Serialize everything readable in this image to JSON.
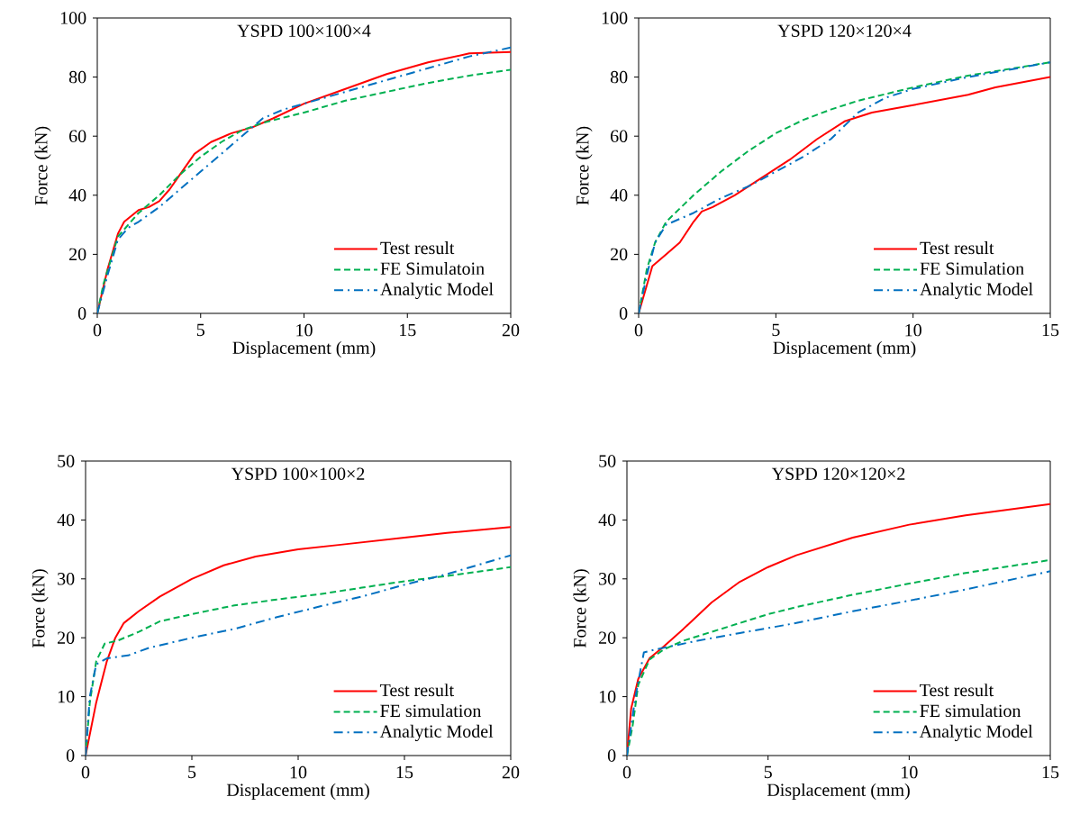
{
  "chart_data": [
    {
      "type": "line",
      "title": "YSPD 100×100×4",
      "xlabel": "Displacement (mm)",
      "ylabel": "Force (kN)",
      "xlim": [
        0,
        20
      ],
      "ylim": [
        0,
        100
      ],
      "xticks": [
        0,
        5,
        10,
        15,
        20
      ],
      "yticks": [
        0,
        20,
        40,
        60,
        80,
        100
      ],
      "legend": "bottom right",
      "series": [
        {
          "name": "Test result",
          "color": "#ff0000",
          "line_style": "solid",
          "x": [
            0,
            0.5,
            1,
            1.3,
            2,
            2.5,
            3,
            3.5,
            4,
            4.7,
            5.5,
            6.5,
            7.5,
            8.5,
            10,
            12,
            14,
            16,
            18,
            20
          ],
          "values": [
            0,
            15,
            27,
            31,
            35,
            36,
            38,
            42,
            47,
            54,
            58,
            61,
            63,
            66,
            71,
            76,
            81,
            85,
            88,
            88.5
          ]
        },
        {
          "name": "FE Simulatoin",
          "color": "#00b050",
          "line_style": "dashed",
          "x": [
            0,
            0.3,
            1,
            2,
            3,
            4,
            5,
            6,
            7,
            8,
            10,
            12,
            14,
            16,
            18,
            20
          ],
          "values": [
            0,
            10,
            26,
            34,
            40,
            47,
            53,
            58,
            62,
            64.5,
            68,
            72,
            75,
            78,
            80.5,
            82.5
          ]
        },
        {
          "name": "Analytic Model",
          "color": "#0070c0",
          "line_style": "dashdot",
          "x": [
            0,
            0.5,
            1,
            1.5,
            2,
            3,
            4,
            5,
            6,
            7,
            8,
            9,
            10,
            12,
            14,
            16,
            18,
            20
          ],
          "values": [
            0,
            13,
            25,
            29,
            31,
            36,
            42,
            48,
            54,
            60,
            66,
            69,
            71,
            75,
            79,
            83,
            87,
            90
          ]
        }
      ]
    },
    {
      "type": "line",
      "title": "YSPD 120×120×4",
      "xlabel": "Displacement (mm)",
      "ylabel": "Force (kN)",
      "xlim": [
        0,
        15
      ],
      "ylim": [
        0,
        100
      ],
      "xticks": [
        0,
        5,
        10,
        15
      ],
      "yticks": [
        0,
        20,
        40,
        60,
        80,
        100
      ],
      "legend": "bottom right",
      "series": [
        {
          "name": "Test result",
          "color": "#ff0000",
          "line_style": "solid",
          "x": [
            0,
            0.5,
            1,
            1.5,
            2,
            2.3,
            2.7,
            3.5,
            4.5,
            5.5,
            6.5,
            7.5,
            8.5,
            10,
            12,
            13,
            15
          ],
          "values": [
            0,
            16,
            20,
            24,
            31,
            34.5,
            36,
            40,
            46,
            52,
            59,
            65,
            68,
            70.5,
            74,
            76.5,
            80
          ]
        },
        {
          "name": "FE Simulation",
          "color": "#00b050",
          "line_style": "dashed",
          "x": [
            0,
            0.3,
            0.6,
            1,
            2,
            3,
            4,
            5,
            6,
            7,
            8,
            10,
            12,
            15
          ],
          "values": [
            0,
            15,
            24,
            31,
            40,
            48,
            55,
            61,
            65.5,
            69,
            72,
            76.5,
            80.5,
            85
          ]
        },
        {
          "name": "Analytic Model",
          "color": "#0070c0",
          "line_style": "dashdot",
          "x": [
            0,
            0.3,
            0.6,
            1,
            2,
            3,
            4,
            5,
            6,
            7,
            8,
            9,
            10,
            12,
            15
          ],
          "values": [
            0,
            13,
            24,
            30,
            34,
            39,
            43,
            48,
            53,
            59,
            68,
            73,
            76,
            80,
            85
          ]
        }
      ]
    },
    {
      "type": "line",
      "title": "YSPD 100×100×2",
      "xlabel": "Displacement (mm)",
      "ylabel": "Force (kN)",
      "xlim": [
        0,
        20
      ],
      "ylim": [
        0,
        50
      ],
      "xticks": [
        0,
        5,
        10,
        15,
        20
      ],
      "yticks": [
        0,
        10,
        20,
        30,
        40,
        50
      ],
      "legend": "bottom right",
      "series": [
        {
          "name": "Test result",
          "color": "#ff0000",
          "line_style": "solid",
          "x": [
            0,
            0.5,
            1,
            1.4,
            1.8,
            2.5,
            3.5,
            5,
            6.5,
            8,
            10,
            12,
            15,
            17,
            20
          ],
          "values": [
            0,
            9,
            16,
            20,
            22.5,
            24.5,
            27,
            30,
            32.3,
            33.8,
            35,
            35.8,
            37,
            37.8,
            38.8
          ]
        },
        {
          "name": "FE simulation",
          "color": "#00b050",
          "line_style": "dashed",
          "x": [
            0,
            0.2,
            0.5,
            0.9,
            1.5,
            2.5,
            3.5,
            5,
            7,
            9,
            11,
            13,
            15,
            17,
            20
          ],
          "values": [
            0,
            9,
            16,
            19,
            19.5,
            21,
            22.8,
            24,
            25.5,
            26.5,
            27.4,
            28.5,
            29.6,
            30.5,
            32
          ]
        },
        {
          "name": "Analytic Model",
          "color": "#0070c0",
          "line_style": "dashdot",
          "x": [
            0,
            0.2,
            0.5,
            1,
            2,
            3,
            5,
            7,
            9,
            11,
            13,
            15,
            17,
            20
          ],
          "values": [
            0,
            10,
            15.5,
            16.5,
            17,
            18.3,
            20,
            21.5,
            23.5,
            25.3,
            27,
            29,
            30.8,
            34
          ]
        }
      ]
    },
    {
      "type": "line",
      "title": "YSPD 120×120×2",
      "xlabel": "Displacement (mm)",
      "ylabel": "Force (kN)",
      "xlim": [
        0,
        15
      ],
      "ylim": [
        0,
        50
      ],
      "xticks": [
        0,
        5,
        10,
        15
      ],
      "yticks": [
        0,
        10,
        20,
        30,
        40,
        50
      ],
      "legend": "bottom right",
      "series": [
        {
          "name": "Test result",
          "color": "#ff0000",
          "line_style": "solid",
          "x": [
            0,
            0.15,
            0.4,
            0.8,
            1.3,
            2,
            3,
            4,
            5,
            6,
            7,
            8,
            10,
            12,
            15
          ],
          "values": [
            0,
            8,
            13,
            16.5,
            18.5,
            21.5,
            26,
            29.5,
            32,
            34,
            35.5,
            37,
            39.2,
            40.8,
            42.7
          ]
        },
        {
          "name": "FE simulation",
          "color": "#00b050",
          "line_style": "dashed",
          "x": [
            0,
            0.2,
            0.4,
            0.8,
            1.3,
            2,
            3,
            4,
            5,
            6,
            8,
            10,
            12,
            15
          ],
          "values": [
            0,
            5,
            12,
            16.3,
            18,
            19.5,
            21,
            22.5,
            24,
            25.2,
            27.3,
            29.2,
            31,
            33.2
          ]
        },
        {
          "name": "Analytic Model",
          "color": "#0070c0",
          "line_style": "dashdot",
          "x": [
            0,
            0.3,
            0.6,
            1,
            1.5,
            2.5,
            4,
            6,
            8,
            10,
            12,
            15
          ],
          "values": [
            0,
            10,
            17.5,
            18,
            18.5,
            19.5,
            20.8,
            22.5,
            24.5,
            26.3,
            28.2,
            31.3
          ]
        }
      ]
    }
  ]
}
